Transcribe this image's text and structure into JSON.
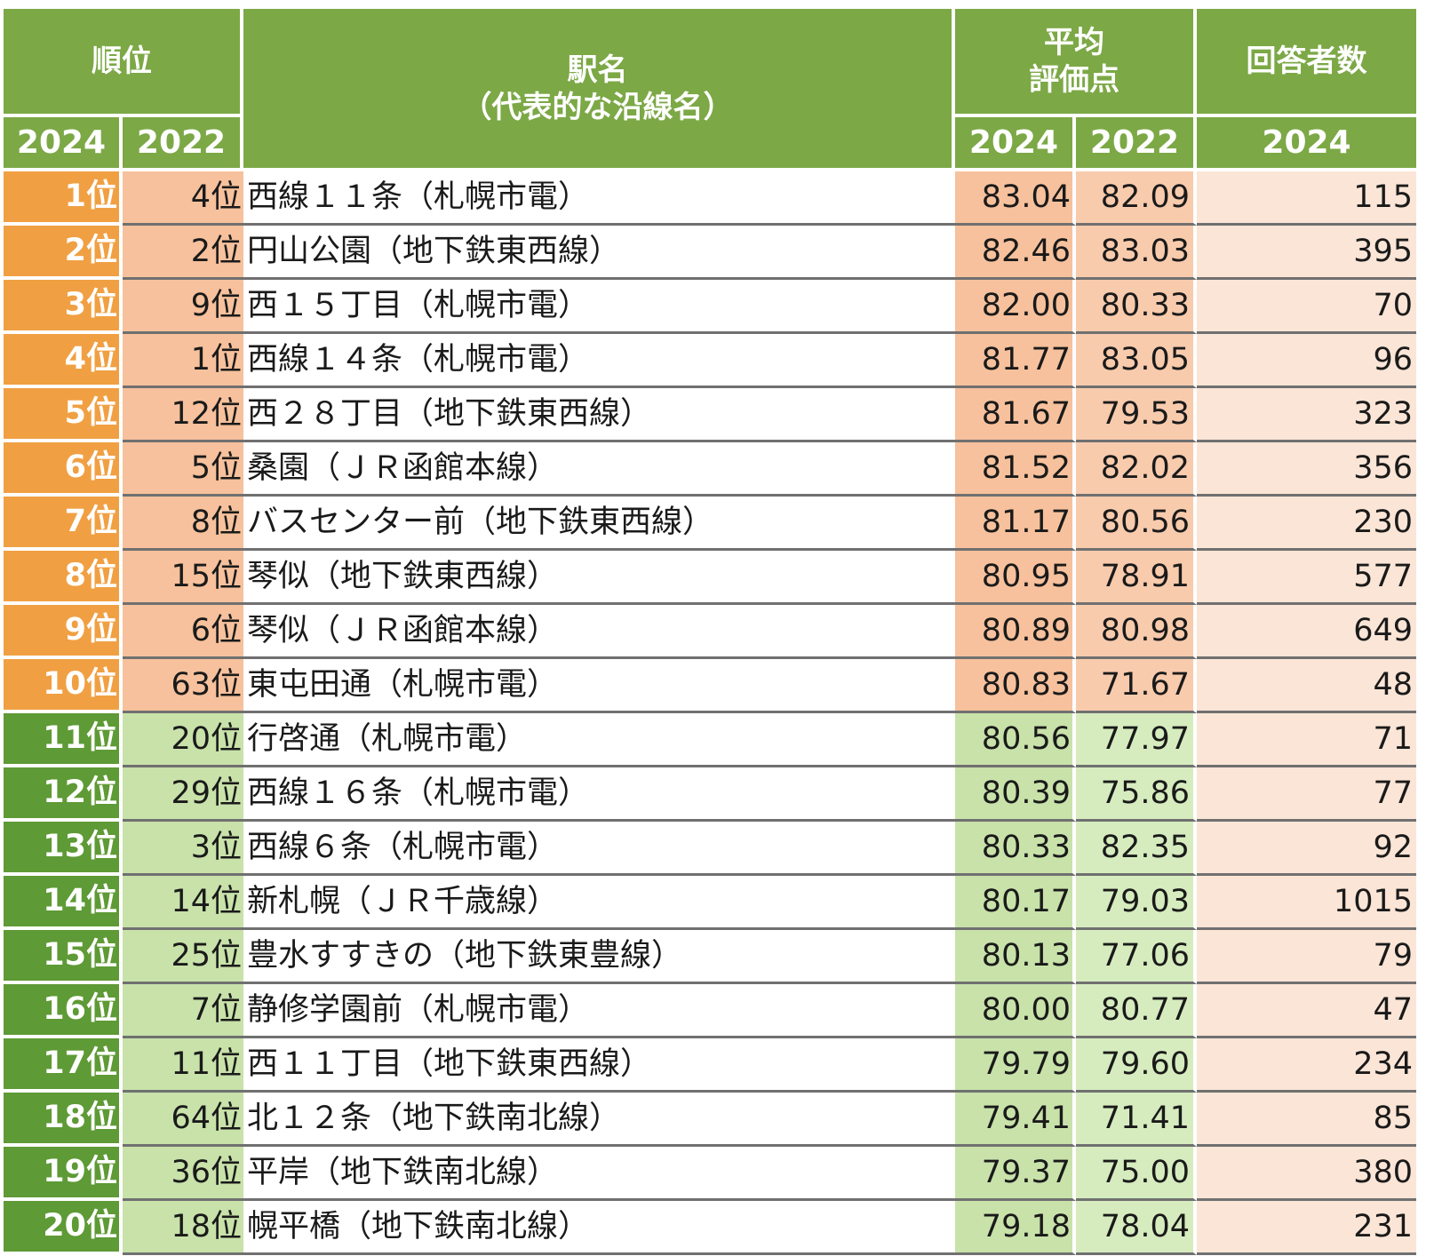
{
  "header": {
    "rank_label": "順位",
    "station_label_line1": "駅名",
    "station_label_line2": "（代表的な沿線名）",
    "avg_label_line1": "平均",
    "avg_label_line2": "評価点",
    "resp_label": "回答者数",
    "year_2024": "2024",
    "year_2022": "2022"
  },
  "colors": {
    "header_green": "#7ca846",
    "top10_rank_orange": "#f0a043",
    "top10_cell_peach": "#f6c19c",
    "rest_rank_green": "#5e9a35",
    "rest_cell_lightgreen": "#c8e2aa",
    "respondents_bg": "#fbe5d6"
  },
  "rows": [
    {
      "rank2024": "1位",
      "rank2022": "4位",
      "station": "西線１１条（札幌市電）",
      "avg2024": "83.04",
      "avg2022": "82.09",
      "respondents": "115"
    },
    {
      "rank2024": "2位",
      "rank2022": "2位",
      "station": "円山公園（地下鉄東西線）",
      "avg2024": "82.46",
      "avg2022": "83.03",
      "respondents": "395"
    },
    {
      "rank2024": "3位",
      "rank2022": "9位",
      "station": "西１５丁目（札幌市電）",
      "avg2024": "82.00",
      "avg2022": "80.33",
      "respondents": "70"
    },
    {
      "rank2024": "4位",
      "rank2022": "1位",
      "station": "西線１４条（札幌市電）",
      "avg2024": "81.77",
      "avg2022": "83.05",
      "respondents": "96"
    },
    {
      "rank2024": "5位",
      "rank2022": "12位",
      "station": "西２８丁目（地下鉄東西線）",
      "avg2024": "81.67",
      "avg2022": "79.53",
      "respondents": "323"
    },
    {
      "rank2024": "6位",
      "rank2022": "5位",
      "station": "桑園（ＪＲ函館本線）",
      "avg2024": "81.52",
      "avg2022": "82.02",
      "respondents": "356"
    },
    {
      "rank2024": "7位",
      "rank2022": "8位",
      "station": "バスセンター前（地下鉄東西線）",
      "avg2024": "81.17",
      "avg2022": "80.56",
      "respondents": "230"
    },
    {
      "rank2024": "8位",
      "rank2022": "15位",
      "station": "琴似（地下鉄東西線）",
      "avg2024": "80.95",
      "avg2022": "78.91",
      "respondents": "577"
    },
    {
      "rank2024": "9位",
      "rank2022": "6位",
      "station": "琴似（ＪＲ函館本線）",
      "avg2024": "80.89",
      "avg2022": "80.98",
      "respondents": "649"
    },
    {
      "rank2024": "10位",
      "rank2022": "63位",
      "station": "東屯田通（札幌市電）",
      "avg2024": "80.83",
      "avg2022": "71.67",
      "respondents": "48"
    },
    {
      "rank2024": "11位",
      "rank2022": "20位",
      "station": "行啓通（札幌市電）",
      "avg2024": "80.56",
      "avg2022": "77.97",
      "respondents": "71"
    },
    {
      "rank2024": "12位",
      "rank2022": "29位",
      "station": "西線１６条（札幌市電）",
      "avg2024": "80.39",
      "avg2022": "75.86",
      "respondents": "77"
    },
    {
      "rank2024": "13位",
      "rank2022": "3位",
      "station": "西線６条（札幌市電）",
      "avg2024": "80.33",
      "avg2022": "82.35",
      "respondents": "92"
    },
    {
      "rank2024": "14位",
      "rank2022": "14位",
      "station": "新札幌（ＪＲ千歳線）",
      "avg2024": "80.17",
      "avg2022": "79.03",
      "respondents": "1015"
    },
    {
      "rank2024": "15位",
      "rank2022": "25位",
      "station": "豊水すすきの（地下鉄東豊線）",
      "avg2024": "80.13",
      "avg2022": "77.06",
      "respondents": "79"
    },
    {
      "rank2024": "16位",
      "rank2022": "7位",
      "station": "静修学園前（札幌市電）",
      "avg2024": "80.00",
      "avg2022": "80.77",
      "respondents": "47"
    },
    {
      "rank2024": "17位",
      "rank2022": "11位",
      "station": "西１１丁目（地下鉄東西線）",
      "avg2024": "79.79",
      "avg2022": "79.60",
      "respondents": "234"
    },
    {
      "rank2024": "18位",
      "rank2022": "64位",
      "station": "北１２条（地下鉄南北線）",
      "avg2024": "79.41",
      "avg2022": "71.41",
      "respondents": "85"
    },
    {
      "rank2024": "19位",
      "rank2022": "36位",
      "station": "平岸（地下鉄南北線）",
      "avg2024": "79.37",
      "avg2022": "75.00",
      "respondents": "380"
    },
    {
      "rank2024": "20位",
      "rank2022": "18位",
      "station": "幌平橋（地下鉄南北線）",
      "avg2024": "79.18",
      "avg2022": "78.04",
      "respondents": "231"
    }
  ]
}
